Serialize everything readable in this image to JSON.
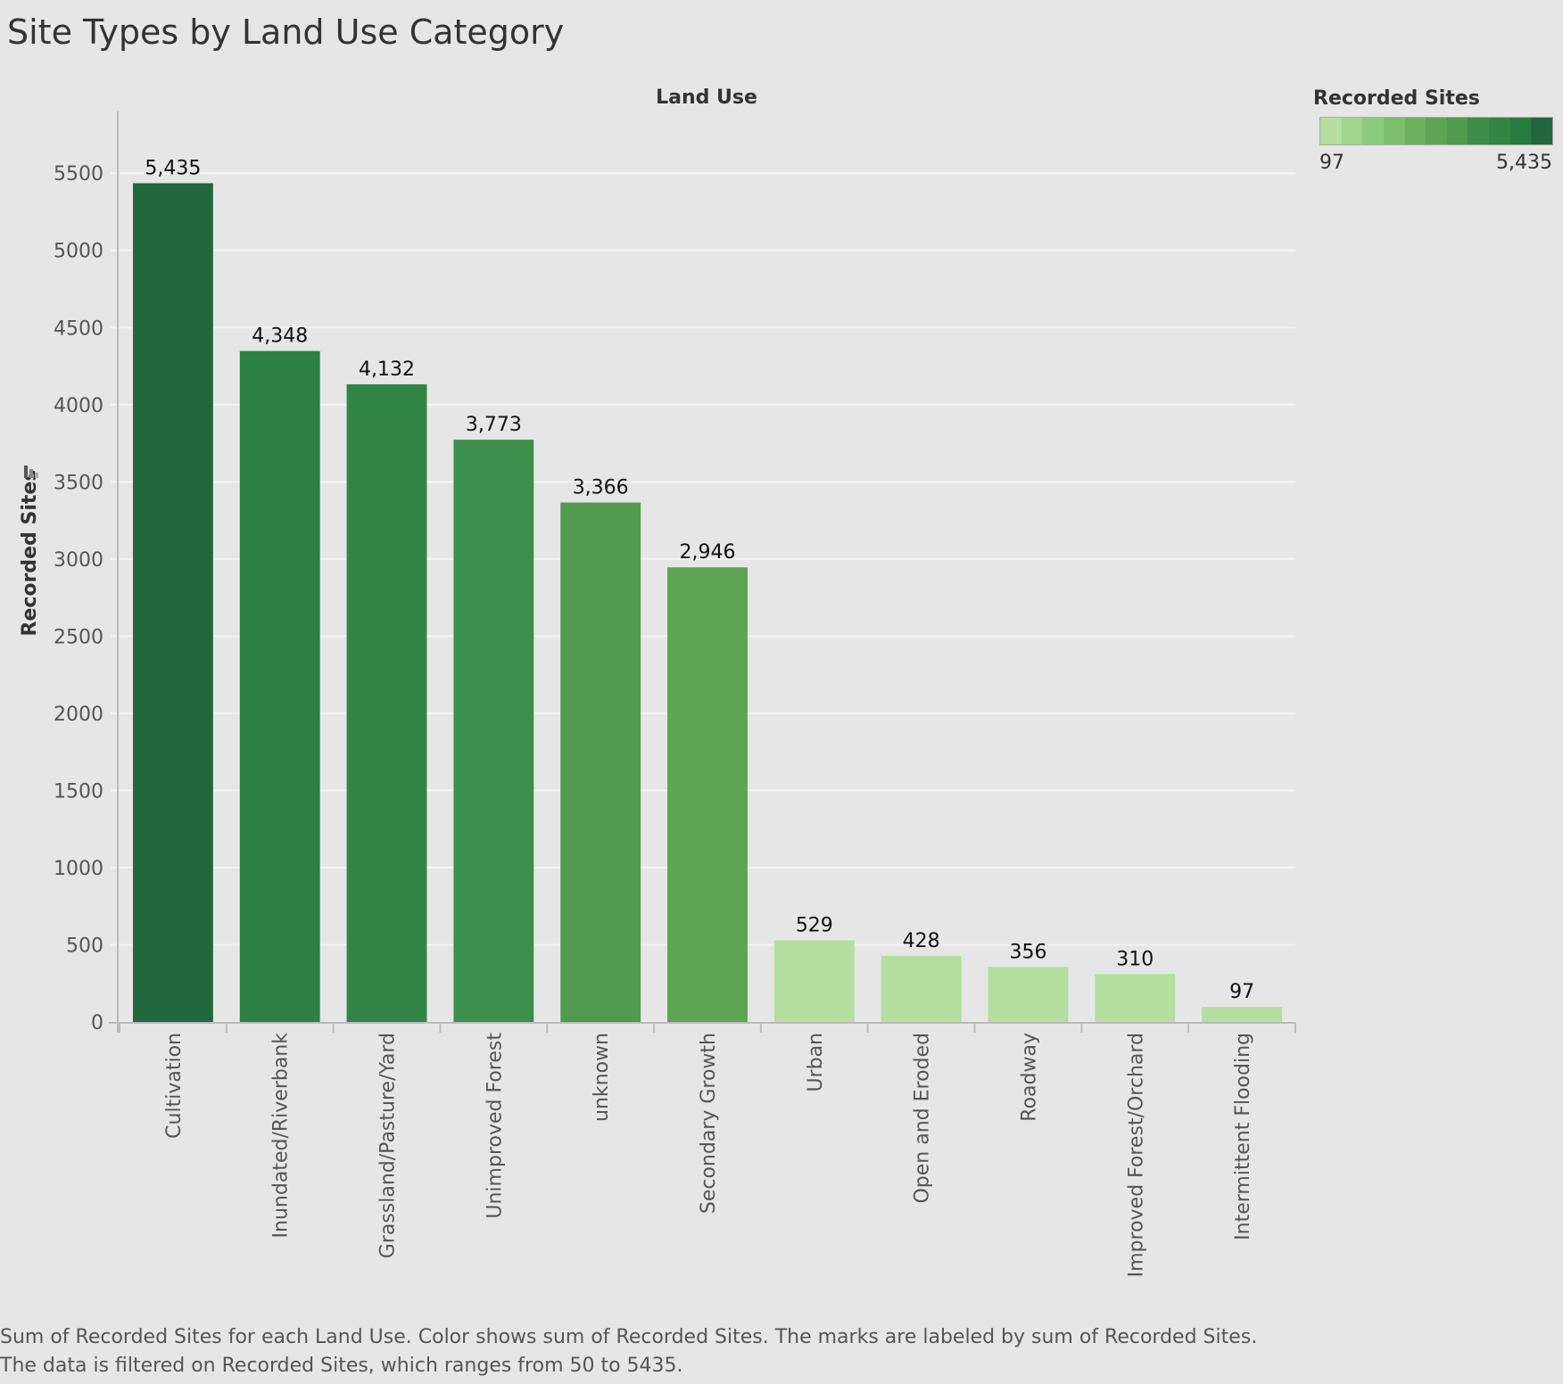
{
  "title": "Site Types by Land Use Category",
  "caption": [
    "Sum of Recorded Sites for each Land Use.  Color shows sum of Recorded Sites.  The marks are labeled by sum of Recorded Sites.",
    "The data is filtered on Recorded Sites, which ranges from 50 to 5435."
  ],
  "legend": {
    "title": "Recorded Sites",
    "min_label": "97",
    "max_label": "5,435",
    "colors": [
      "#b4dfa0",
      "#9fd68c",
      "#8ccb7c",
      "#7bbf6d",
      "#6cb25f",
      "#5ea553",
      "#4f9a4c",
      "#3f8c47",
      "#338542",
      "#287a3f",
      "#22663e"
    ]
  },
  "chart_data": {
    "type": "bar",
    "title": "Site Types by Land Use Category",
    "xlabel": "Land Use",
    "ylabel": "Recorded Sites",
    "ylim": [
      0,
      5900
    ],
    "yticks": [
      0,
      500,
      1000,
      1500,
      2000,
      2500,
      3000,
      3500,
      4000,
      4500,
      5000,
      5500
    ],
    "grid": true,
    "legend_placement": "top-right",
    "categories": [
      "Cultivation",
      "Inundated/Riverbank",
      "Grassland/Pasture/Yard",
      "Unimproved Forest",
      "unknown",
      "Secondary Growth",
      "Urban",
      "Open and Eroded",
      "Roadway",
      "Improved Forest/Orchard",
      "Intermittent Flooding"
    ],
    "values": [
      5435,
      4348,
      4132,
      3773,
      3366,
      2946,
      529,
      428,
      356,
      310,
      97
    ],
    "labels": [
      "5,435",
      "4,348",
      "4,132",
      "3,773",
      "3,366",
      "2,946",
      "529",
      "428",
      "356",
      "310",
      "97"
    ],
    "colors": [
      "#22683f",
      "#2d8043",
      "#308445",
      "#3d8e4b",
      "#509a50",
      "#5ea553",
      "#b4dfa0",
      "#b4dfa0",
      "#b4dfa0",
      "#b4dfa0",
      "#b4dfa0"
    ]
  }
}
